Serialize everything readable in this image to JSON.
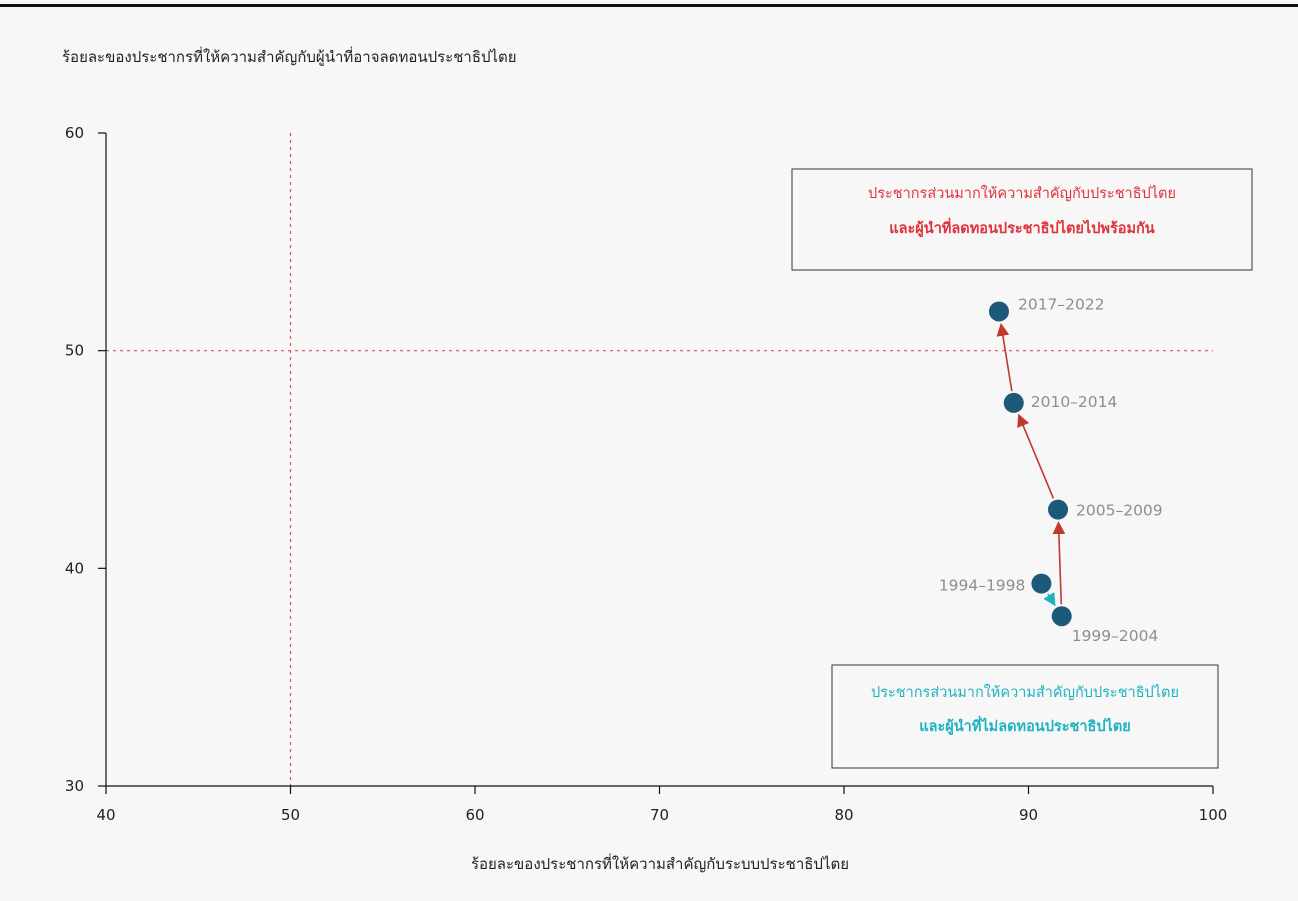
{
  "chart_data": {
    "type": "scatter",
    "title": "",
    "xlabel": "ร้อยละของประชากรที่ให้ความสำคัญกับระบบประชาธิปไตย",
    "ylabel": "ร้อยละของประชากรที่ให้ความสำคัญกับผู้นำที่อาจลดทอนประชาธิปไตย",
    "xlim": [
      40,
      100
    ],
    "ylim": [
      30,
      60
    ],
    "xticks": [
      40,
      50,
      60,
      70,
      80,
      90,
      100
    ],
    "yticks": [
      30,
      40,
      50,
      60
    ],
    "grid": false,
    "reference_lines": {
      "x": 50,
      "y": 50,
      "color": "#e05252"
    },
    "points": [
      {
        "label": "1994–1998",
        "x": 90.7,
        "y": 39.3
      },
      {
        "label": "1999–2004",
        "x": 91.8,
        "y": 37.8
      },
      {
        "label": "2005–2009",
        "x": 91.6,
        "y": 42.7
      },
      {
        "label": "2010–2014",
        "x": 89.2,
        "y": 47.6
      },
      {
        "label": "2017–2022",
        "x": 88.4,
        "y": 51.8
      }
    ],
    "arrows": [
      {
        "from": 0,
        "to": 1,
        "color": "#1fb3bf"
      },
      {
        "from": 1,
        "to": 2,
        "color": "#c0392b"
      },
      {
        "from": 2,
        "to": 3,
        "color": "#c0392b"
      },
      {
        "from": 3,
        "to": 4,
        "color": "#c0392b"
      }
    ],
    "annotations": [
      {
        "line1": "ประชากรส่วนมากให้ความสำคัญกับประชาธิปไตย",
        "line2": "และผู้นำที่ลดทอนประชาธิปไตยไปพร้อมกัน",
        "color": "#e0323c"
      },
      {
        "line1": "ประชากรส่วนมากให้ความสำคัญกับประชาธิปไตย",
        "line2": "และผู้นำที่ไม่ลดทอนประชาธิปไตย",
        "color": "#1fb3bf"
      }
    ],
    "point_color": "#1d5a7a"
  }
}
